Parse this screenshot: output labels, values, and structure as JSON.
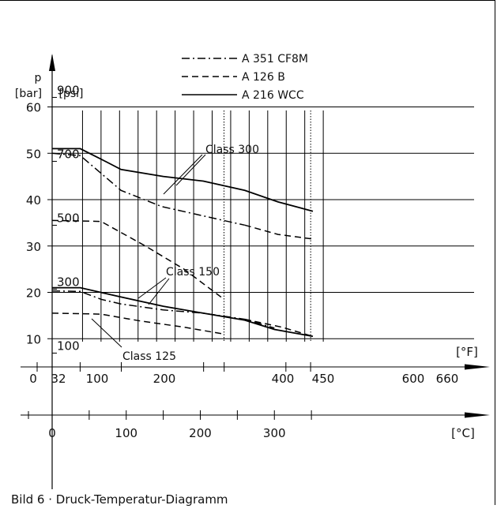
{
  "caption": "Bild 6 · Druck-Temperatur-Diagramm",
  "chart_data": {
    "type": "line",
    "title": "",
    "y_axis_bar": {
      "label_p": "p",
      "label_unit": "[bar]",
      "ticks": [
        10,
        20,
        30,
        40,
        50,
        60
      ],
      "range": [
        0,
        60
      ]
    },
    "y_axis_psi": {
      "label_unit": "[psi]",
      "ticks": [
        100,
        300,
        500,
        700,
        900
      ]
    },
    "x_axis_f": {
      "unit": "[°F]",
      "ticks": [
        0,
        32,
        100,
        200,
        400,
        450,
        600,
        660
      ]
    },
    "x_axis_c": {
      "unit": "[°C]",
      "ticks": [
        0,
        100,
        200,
        300
      ],
      "range": [
        0,
        360
      ]
    },
    "dotted_refs_c": [
      216,
      232,
      349
    ],
    "legend": [
      {
        "name": "A 351 CF8M",
        "style": "dashdot"
      },
      {
        "name": "A 126 B",
        "style": "dash"
      },
      {
        "name": "A 216 WCC",
        "style": "solid"
      }
    ],
    "annotations": [
      "Class 300",
      "Class 150",
      "Class 125"
    ],
    "series": [
      {
        "class": "Class 300",
        "material": "A 216 WCC",
        "style": "solid",
        "points": [
          [
            0,
            51
          ],
          [
            38,
            51
          ],
          [
            75,
            48
          ],
          [
            93,
            46.5
          ],
          [
            150,
            45
          ],
          [
            204,
            44
          ],
          [
            260,
            42
          ],
          [
            305,
            39.5
          ],
          [
            352,
            37.5
          ]
        ]
      },
      {
        "class": "Class 300",
        "material": "A 351 CF8M",
        "style": "dashdot",
        "points": [
          [
            0,
            50
          ],
          [
            38,
            49.5
          ],
          [
            93,
            42
          ],
          [
            148,
            38.5
          ],
          [
            204,
            36.5
          ],
          [
            240,
            35.2
          ],
          [
            260,
            34.5
          ]
        ]
      },
      {
        "class": "Class 300",
        "material": "A 351 CF8M",
        "style": "dash",
        "points": [
          [
            260,
            34.5
          ],
          [
            305,
            32.5
          ],
          [
            352,
            31.5
          ]
        ]
      },
      {
        "class": "Class 300",
        "material": "A 126 B",
        "style": "dash",
        "points": [
          [
            0,
            35.5
          ],
          [
            66,
            35.3
          ],
          [
            126,
            30
          ],
          [
            178,
            25
          ],
          [
            232,
            18.5
          ]
        ]
      },
      {
        "class": "Class 150",
        "material": "A 216 WCC",
        "style": "solid",
        "points": [
          [
            0,
            21
          ],
          [
            38,
            21
          ],
          [
            93,
            19
          ],
          [
            150,
            17
          ],
          [
            204,
            15.5
          ],
          [
            260,
            14
          ],
          [
            300,
            12
          ],
          [
            352,
            10.5
          ]
        ]
      },
      {
        "class": "Class 150",
        "material": "A 351 CF8M",
        "style": "dashdot",
        "points": [
          [
            0,
            20.3
          ],
          [
            38,
            20.2
          ],
          [
            66,
            18.5
          ],
          [
            93,
            17.5
          ],
          [
            150,
            16.2
          ],
          [
            204,
            15.5
          ],
          [
            260,
            14.2
          ],
          [
            300,
            12.3
          ]
        ]
      },
      {
        "class": "Class 150",
        "material": "A 351 CF8M",
        "style": "dash",
        "points": [
          [
            260,
            14.2
          ],
          [
            310,
            12.5
          ],
          [
            352,
            10.5
          ]
        ]
      },
      {
        "class": "Class 125",
        "material": "A 126 B",
        "style": "dash",
        "points": [
          [
            0,
            15.5
          ],
          [
            66,
            15.3
          ],
          [
            120,
            13.8
          ],
          [
            178,
            12.5
          ],
          [
            232,
            11
          ]
        ]
      }
    ]
  }
}
